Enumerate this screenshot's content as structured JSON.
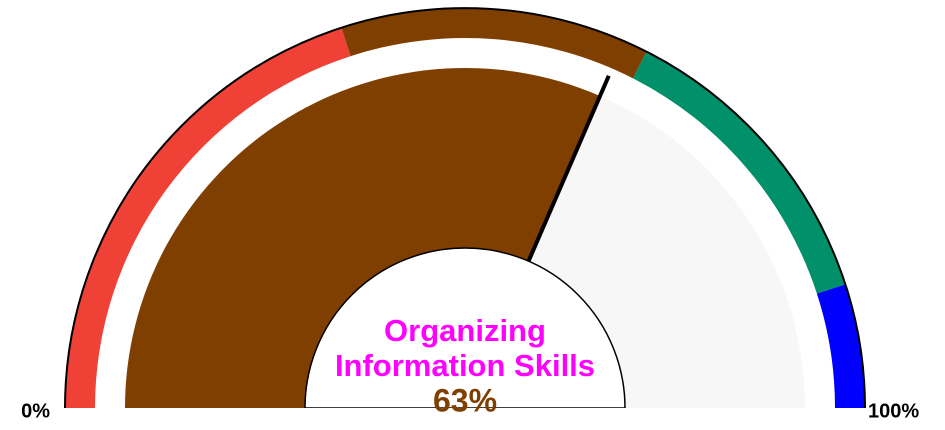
{
  "chart_data": {
    "type": "gauge",
    "title": [
      "Organizing",
      "Information Skills"
    ],
    "title_color": "#ff00ff",
    "value": 63,
    "value_labels": "63%",
    "xlim": [
      0,
      100
    ],
    "xticks": [
      {
        "value": 0,
        "label": "0%"
      },
      {
        "value": 100,
        "label": "100%"
      }
    ],
    "bands": [
      {
        "from": 0,
        "to": 40,
        "color": "#ef4136"
      },
      {
        "from": 40,
        "to": 65,
        "color": "#7f3f00"
      },
      {
        "from": 65,
        "to": 90,
        "color": "#00906a"
      },
      {
        "from": 90,
        "to": 100,
        "color": "#0000ff"
      }
    ],
    "remainder_color": "#f7f7f7"
  }
}
